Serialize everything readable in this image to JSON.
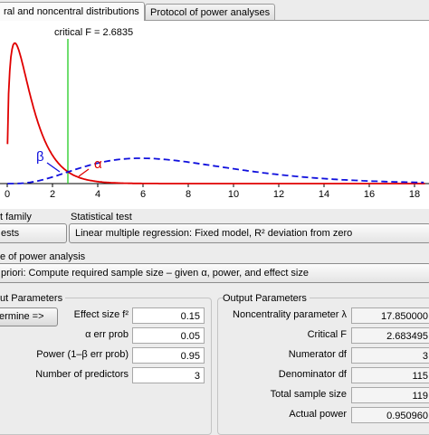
{
  "tabs": {
    "distributions": "ral and noncentral distributions",
    "protocol": "Protocol of power analyses"
  },
  "plot": {
    "critical_label": "critical F = 2.6835",
    "beta_symbol": "β",
    "alpha_symbol": "α",
    "x_ticks": [
      "0",
      "2",
      "4",
      "6",
      "8",
      "10",
      "12",
      "14",
      "16",
      "18"
    ],
    "colors": {
      "central": "#e00000",
      "noncentral": "#1010dd",
      "critical": "#22cc22"
    }
  },
  "test_family": {
    "label": "t family",
    "value": "ests"
  },
  "statistical_test": {
    "label": "Statistical test",
    "value": "Linear multiple regression: Fixed model, R² deviation from zero"
  },
  "power_analysis": {
    "label": "e of power analysis",
    "value": "priori: Compute required sample size – given α, power, and effect size"
  },
  "input": {
    "header": "ut Parameters",
    "determine_button": "ermine =>",
    "rows": [
      {
        "label": "Effect size f²",
        "value": "0.15"
      },
      {
        "label": "α err prob",
        "value": "0.05"
      },
      {
        "label": "Power (1–β err prob)",
        "value": "0.95"
      },
      {
        "label": "Number of predictors",
        "value": "3"
      }
    ]
  },
  "output": {
    "header": "Output Parameters",
    "rows": [
      {
        "label": "Noncentrality parameter λ",
        "value": "17.850000"
      },
      {
        "label": "Critical F",
        "value": "2.683495"
      },
      {
        "label": "Numerator df",
        "value": "3"
      },
      {
        "label": "Denominator df",
        "value": "115"
      },
      {
        "label": "Total sample size",
        "value": "119"
      },
      {
        "label": "Actual power",
        "value": "0.950960"
      }
    ]
  }
}
